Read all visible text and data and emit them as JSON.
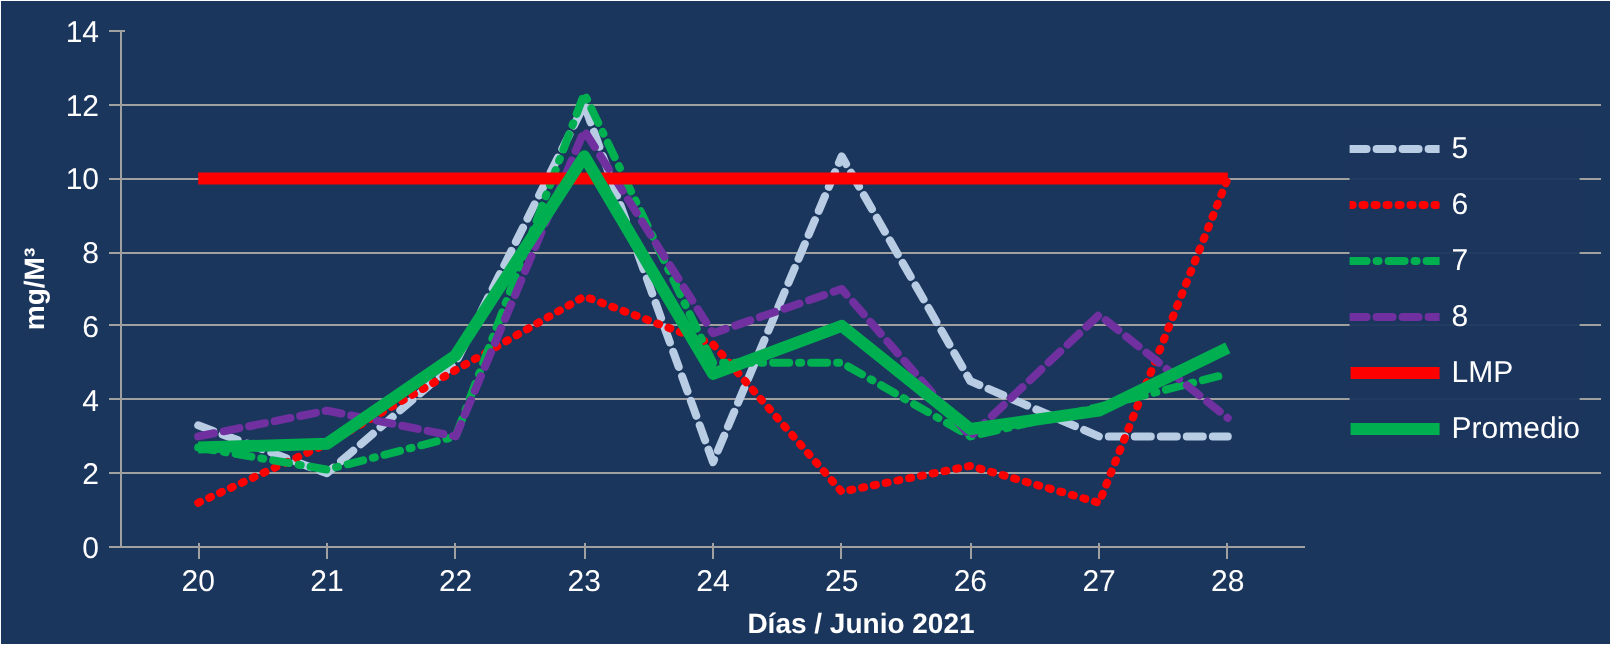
{
  "chart_data": {
    "type": "line",
    "xlabel": "Días / Junio 2021",
    "ylabel": "mg/M³",
    "categories": [
      "20",
      "21",
      "22",
      "23",
      "24",
      "25",
      "26",
      "27",
      "28"
    ],
    "ylim": [
      0,
      14
    ],
    "yticks": [
      0,
      2,
      4,
      6,
      8,
      10,
      12,
      14
    ],
    "grid": "y",
    "legend": "right",
    "marker": "none",
    "series": [
      {
        "name": "5",
        "color": "#b8cce4",
        "line_style": "dashed",
        "values": [
          3.3,
          2.0,
          5.0,
          12.0,
          2.3,
          10.6,
          4.5,
          3.0,
          3.0
        ]
      },
      {
        "name": "6",
        "color": "#ff0000",
        "line_style": "dotted",
        "values": [
          1.2,
          2.8,
          4.8,
          6.8,
          5.5,
          1.5,
          2.2,
          1.2,
          10.0
        ]
      },
      {
        "name": "7",
        "color": "#00b050",
        "line_style": "dashdot",
        "values": [
          2.7,
          2.1,
          3.0,
          12.3,
          5.0,
          5.0,
          3.0,
          3.8,
          4.7
        ]
      },
      {
        "name": "8",
        "color": "#7030a0",
        "line_style": "dashed",
        "values": [
          3.0,
          3.7,
          3.0,
          11.3,
          5.8,
          7.0,
          3.0,
          6.3,
          3.5
        ]
      },
      {
        "name": "LMP",
        "color": "#ff0000",
        "line_style": "solid",
        "values": [
          10,
          10,
          10,
          10,
          10,
          10,
          10,
          10,
          10
        ]
      },
      {
        "name": "Promedio",
        "color": "#00b050",
        "line_style": "solid",
        "values": [
          2.7,
          2.8,
          5.2,
          10.6,
          4.7,
          6.0,
          3.2,
          3.7,
          5.4
        ]
      }
    ]
  }
}
